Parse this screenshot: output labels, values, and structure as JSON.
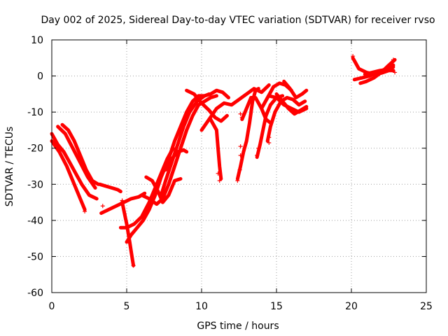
{
  "chart_data": {
    "type": "scatter",
    "title": "Day 002 of 2025, Sidereal Day-to-day VTEC variation (SDTVAR) for receiver rvso",
    "xlabel": "GPS time / hours",
    "ylabel": "SDTVAR / TECUs",
    "xlim": [
      0,
      25
    ],
    "ylim": [
      -60,
      10
    ],
    "xticks": [
      "0",
      "5",
      "10",
      "15",
      "20",
      "25"
    ],
    "yticks": [
      "10",
      "0",
      "-10",
      "-20",
      "-30",
      "-40",
      "-50",
      "-60"
    ],
    "grid": true,
    "marker": "+",
    "color": "#ff0000",
    "series": [
      {
        "name": "t1",
        "points": [
          [
            0,
            -16
          ],
          [
            0.4,
            -19
          ],
          [
            0.8,
            -21
          ],
          [
            1.2,
            -24
          ],
          [
            1.6,
            -27
          ],
          [
            2.0,
            -30
          ],
          [
            2.5,
            -33
          ],
          [
            3.0,
            -34
          ]
        ]
      },
      {
        "name": "t2",
        "points": [
          [
            0,
            -18
          ],
          [
            0.5,
            -21
          ],
          [
            1.0,
            -25
          ],
          [
            1.5,
            -30
          ],
          [
            2.0,
            -35
          ],
          [
            2.2,
            -37
          ]
        ]
      },
      {
        "name": "t3",
        "points": [
          [
            0.4,
            -14
          ],
          [
            0.9,
            -16
          ],
          [
            1.4,
            -20
          ],
          [
            1.9,
            -24
          ],
          [
            2.4,
            -28
          ],
          [
            2.9,
            -31
          ]
        ]
      },
      {
        "name": "t4",
        "points": [
          [
            0.7,
            -13.5
          ],
          [
            1.1,
            -15
          ],
          [
            1.5,
            -18
          ],
          [
            1.9,
            -22
          ],
          [
            2.3,
            -26
          ],
          [
            2.7,
            -29
          ],
          [
            3.1,
            -30
          ]
        ]
      },
      {
        "name": "t5",
        "points": [
          [
            3.2,
            -30
          ],
          [
            3.6,
            -30.5
          ],
          [
            4.0,
            -31
          ],
          [
            4.4,
            -31.5
          ],
          [
            4.6,
            -32
          ]
        ]
      },
      {
        "name": "t6",
        "points": [
          [
            3.3,
            -38
          ],
          [
            3.8,
            -37
          ],
          [
            4.3,
            -36
          ],
          [
            4.8,
            -35
          ],
          [
            5.3,
            -34
          ],
          [
            5.8,
            -33.5
          ],
          [
            6.2,
            -32.5
          ]
        ]
      },
      {
        "name": "t7",
        "points": [
          [
            4.6,
            -42
          ],
          [
            5.0,
            -42
          ],
          [
            5.5,
            -41
          ],
          [
            6.0,
            -39
          ],
          [
            6.5,
            -35
          ],
          [
            6.9,
            -31
          ],
          [
            7.3,
            -27
          ],
          [
            7.7,
            -23
          ],
          [
            8.1,
            -20
          ]
        ]
      },
      {
        "name": "t8",
        "points": [
          [
            5.0,
            -46
          ],
          [
            5.3,
            -44
          ],
          [
            5.7,
            -42
          ],
          [
            6.1,
            -40
          ],
          [
            6.5,
            -37
          ],
          [
            6.9,
            -33
          ],
          [
            7.3,
            -28
          ],
          [
            7.8,
            -23
          ],
          [
            8.2,
            -18
          ],
          [
            8.6,
            -14
          ],
          [
            9.0,
            -10
          ],
          [
            9.4,
            -7
          ],
          [
            9.8,
            -5.5
          ],
          [
            10.2,
            -5.5
          ],
          [
            10.5,
            -5
          ]
        ]
      },
      {
        "name": "t9",
        "points": [
          [
            4.7,
            -35
          ],
          [
            5.0,
            -41
          ],
          [
            5.2,
            -46
          ],
          [
            5.35,
            -50
          ],
          [
            5.45,
            -52.5
          ]
        ]
      },
      {
        "name": "t10",
        "points": [
          [
            6.3,
            -28
          ],
          [
            6.7,
            -29
          ],
          [
            7.1,
            -32
          ],
          [
            7.4,
            -35
          ],
          [
            7.8,
            -33
          ],
          [
            8.2,
            -29
          ],
          [
            8.6,
            -28.5
          ]
        ]
      },
      {
        "name": "t11",
        "points": [
          [
            6.0,
            -33
          ],
          [
            6.5,
            -34
          ],
          [
            7.0,
            -35.5
          ],
          [
            7.4,
            -34
          ],
          [
            7.8,
            -30
          ],
          [
            8.2,
            -25
          ],
          [
            8.6,
            -20
          ],
          [
            9.0,
            -15
          ],
          [
            9.4,
            -11
          ],
          [
            9.8,
            -8
          ],
          [
            10.2,
            -7
          ],
          [
            10.6,
            -6
          ],
          [
            11.0,
            -5.5
          ]
        ]
      },
      {
        "name": "t12",
        "points": [
          [
            7.6,
            -26
          ],
          [
            8.0,
            -23
          ],
          [
            8.4,
            -21
          ],
          [
            8.8,
            -20.5
          ],
          [
            9.0,
            -21
          ]
        ]
      },
      {
        "name": "t13",
        "points": [
          [
            7.3,
            -33
          ],
          [
            7.6,
            -29
          ],
          [
            8.0,
            -24
          ],
          [
            8.4,
            -19
          ],
          [
            8.8,
            -14
          ],
          [
            9.2,
            -10
          ],
          [
            9.7,
            -7
          ],
          [
            10.2,
            -5.5
          ],
          [
            10.6,
            -5
          ],
          [
            11.0,
            -4
          ],
          [
            11.4,
            -4.5
          ],
          [
            11.8,
            -6
          ]
        ]
      },
      {
        "name": "t14",
        "points": [
          [
            9.0,
            -4
          ],
          [
            9.5,
            -5
          ],
          [
            10.0,
            -7.5
          ],
          [
            10.5,
            -9.5
          ],
          [
            10.9,
            -11.5
          ],
          [
            11.3,
            -12.5
          ],
          [
            11.7,
            -11
          ]
        ]
      },
      {
        "name": "t15",
        "points": [
          [
            10.0,
            -15
          ],
          [
            10.5,
            -12
          ],
          [
            11.0,
            -9
          ],
          [
            11.5,
            -7.5
          ],
          [
            12.0,
            -8
          ],
          [
            12.5,
            -6.5
          ],
          [
            13.0,
            -5
          ],
          [
            13.5,
            -3.5
          ],
          [
            14.0,
            -4.5
          ],
          [
            14.5,
            -2.5
          ]
        ]
      },
      {
        "name": "t16",
        "points": [
          [
            10.6,
            -12
          ],
          [
            11.0,
            -15
          ],
          [
            11.1,
            -20
          ],
          [
            11.2,
            -25
          ],
          [
            11.3,
            -28.5
          ]
        ]
      },
      {
        "name": "t17",
        "points": [
          [
            12.4,
            -28.5
          ],
          [
            12.6,
            -25
          ],
          [
            12.8,
            -21
          ],
          [
            13.0,
            -18
          ],
          [
            13.2,
            -13
          ],
          [
            13.4,
            -7
          ],
          [
            13.6,
            -4
          ],
          [
            13.8,
            -3.5
          ]
        ]
      },
      {
        "name": "t18",
        "points": [
          [
            12.7,
            -12
          ],
          [
            13.0,
            -9
          ],
          [
            13.3,
            -6
          ],
          [
            13.6,
            -6
          ],
          [
            14.0,
            -9
          ],
          [
            14.3,
            -12
          ],
          [
            14.6,
            -13
          ]
        ]
      },
      {
        "name": "t19",
        "points": [
          [
            13.7,
            -22.5
          ],
          [
            13.9,
            -19
          ],
          [
            14.1,
            -15
          ],
          [
            14.3,
            -11
          ],
          [
            14.6,
            -8
          ],
          [
            15.0,
            -6
          ],
          [
            15.4,
            -5.5
          ]
        ]
      },
      {
        "name": "t20",
        "points": [
          [
            14.0,
            -9
          ],
          [
            14.4,
            -6
          ],
          [
            14.8,
            -3
          ],
          [
            15.2,
            -2
          ],
          [
            15.6,
            -2.5
          ],
          [
            16.0,
            -4
          ]
        ]
      },
      {
        "name": "t21",
        "points": [
          [
            14.4,
            -18
          ],
          [
            14.6,
            -14
          ],
          [
            14.9,
            -10
          ],
          [
            15.3,
            -7
          ],
          [
            15.7,
            -6
          ],
          [
            16.1,
            -6.5
          ],
          [
            16.5,
            -8
          ],
          [
            16.9,
            -7
          ]
        ]
      },
      {
        "name": "t22",
        "points": [
          [
            15.5,
            -1.5
          ],
          [
            15.9,
            -3.5
          ],
          [
            16.3,
            -6
          ],
          [
            16.7,
            -5
          ],
          [
            17.0,
            -4
          ]
        ]
      },
      {
        "name": "t23",
        "points": [
          [
            15.0,
            -5
          ],
          [
            15.4,
            -7
          ],
          [
            15.8,
            -9
          ],
          [
            16.2,
            -10.5
          ],
          [
            16.6,
            -9.5
          ],
          [
            17.0,
            -8.5
          ]
        ]
      },
      {
        "name": "t24",
        "points": [
          [
            14.5,
            -5.5
          ],
          [
            15.0,
            -6
          ],
          [
            15.5,
            -8
          ],
          [
            16.0,
            -9
          ],
          [
            16.5,
            -10
          ],
          [
            17.0,
            -9
          ]
        ]
      },
      {
        "name": "t25",
        "points": [
          [
            20.1,
            5
          ],
          [
            20.5,
            2
          ],
          [
            21.0,
            1
          ],
          [
            21.5,
            0.5
          ],
          [
            22.0,
            0.8
          ],
          [
            22.5,
            1.5
          ],
          [
            22.8,
            1.5
          ]
        ]
      },
      {
        "name": "t26",
        "points": [
          [
            20.2,
            -1
          ],
          [
            20.7,
            -0.5
          ],
          [
            21.2,
            0
          ],
          [
            21.8,
            1
          ],
          [
            22.3,
            2
          ],
          [
            22.8,
            3
          ]
        ]
      },
      {
        "name": "t27",
        "points": [
          [
            20.6,
            -2
          ],
          [
            21.0,
            -1.5
          ],
          [
            21.5,
            -0.5
          ],
          [
            22.0,
            1
          ],
          [
            22.5,
            3
          ],
          [
            22.9,
            4.5
          ]
        ]
      },
      {
        "name": "t28",
        "points": [
          [
            20.9,
            0.5
          ],
          [
            21.4,
            1
          ],
          [
            21.9,
            1.5
          ],
          [
            22.4,
            1.8
          ],
          [
            22.8,
            2.5
          ]
        ]
      }
    ],
    "scatter_points": [
      [
        3.4,
        -36
      ],
      [
        11.1,
        -27
      ],
      [
        11.2,
        -29
      ],
      [
        12.4,
        -29
      ],
      [
        12.55,
        -26
      ],
      [
        12.6,
        -22
      ],
      [
        12.6,
        -19.5
      ],
      [
        12.6,
        -10.5
      ],
      [
        12.7,
        -11.5
      ],
      [
        13.7,
        -22
      ],
      [
        13.8,
        -20
      ],
      [
        14.5,
        -18.5
      ],
      [
        14.5,
        -17
      ],
      [
        20.1,
        5.5
      ],
      [
        22.8,
        4.5
      ],
      [
        22.9,
        1
      ],
      [
        5.45,
        -52.5
      ],
      [
        4.7,
        -34.5
      ],
      [
        2.2,
        -37.5
      ]
    ]
  }
}
